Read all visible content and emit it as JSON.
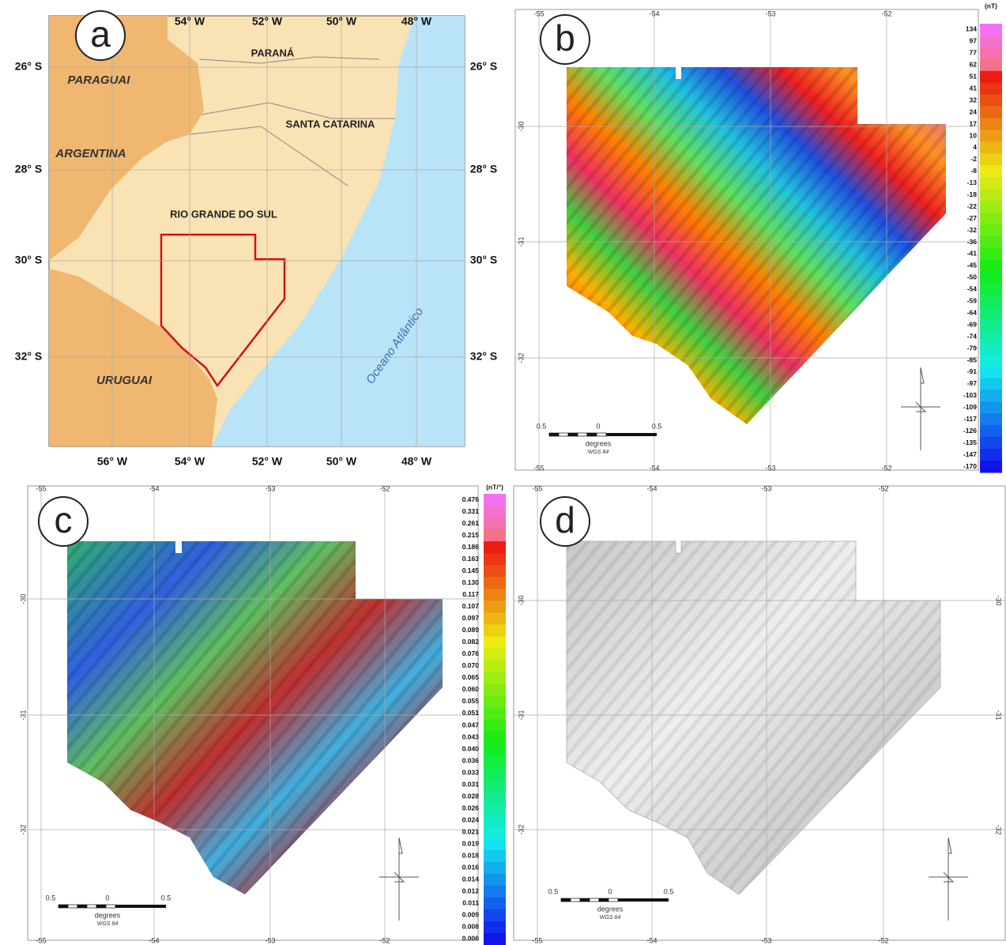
{
  "panels": [
    {
      "label": "a",
      "top_ticks": [
        "54° W",
        "52° W",
        "50° W",
        "48° W"
      ],
      "bottom_ticks": [
        "56° W",
        "54° W",
        "52° W",
        "50° W",
        "48° W"
      ],
      "left_ticks": [
        "26° S",
        "28° S",
        "30° S",
        "32° S"
      ],
      "right_ticks": [
        "26° S",
        "28° S",
        "30° S",
        "32° S"
      ],
      "places": {
        "paraguai": "PARAGUAI",
        "parana": "PARANÁ",
        "santa_catarina": "SANTA CATARINA",
        "argentina": "ARGENTINA",
        "rgs": "RIO GRANDE DO SUL",
        "uruguai": "URUGUAI",
        "ocean": "Oceano Atlântico"
      }
    },
    {
      "label": "b",
      "top_ticks": [
        "-55",
        "-54",
        "-53",
        "-52"
      ],
      "bottom_ticks": [
        "-55",
        "-54",
        "-53",
        "-52"
      ],
      "left_ticks": [
        "-30",
        "-31",
        "-32"
      ],
      "colorbar": {
        "unit": "(nT)",
        "labels": [
          "134",
          "97",
          "77",
          "62",
          "51",
          "41",
          "32",
          "24",
          "17",
          "10",
          "4",
          "-2",
          "-8",
          "-13",
          "-18",
          "-22",
          "-27",
          "-32",
          "-36",
          "-41",
          "-45",
          "-50",
          "-54",
          "-59",
          "-64",
          "-69",
          "-74",
          "-79",
          "-85",
          "-91",
          "-97",
          "-103",
          "-109",
          "-117",
          "-126",
          "-135",
          "-147",
          "-170"
        ]
      },
      "scale": {
        "labels": [
          "0.5",
          "0",
          "0.5"
        ],
        "unit": "degrees",
        "datum": "WGS 84"
      }
    },
    {
      "label": "c",
      "top_ticks": [
        "-55",
        "-54",
        "-53",
        "-52"
      ],
      "bottom_ticks": [
        "-55",
        "-54",
        "-53",
        "-52"
      ],
      "left_ticks": [
        "-30",
        "-31",
        "-32"
      ],
      "colorbar": {
        "unit": "(nT/°)",
        "labels": [
          "0.476",
          "0.331",
          "0.261",
          "0.215",
          "0.186",
          "0.163",
          "0.145",
          "0.130",
          "0.117",
          "0.107",
          "0.097",
          "0.089",
          "0.082",
          "0.076",
          "0.070",
          "0.065",
          "0.060",
          "0.055",
          "0.051",
          "0.047",
          "0.043",
          "0.040",
          "0.036",
          "0.033",
          "0.031",
          "0.028",
          "0.026",
          "0.024",
          "0.021",
          "0.019",
          "0.018",
          "0.016",
          "0.014",
          "0.012",
          "0.011",
          "0.009",
          "0.008",
          "0.006"
        ]
      },
      "scale": {
        "labels": [
          "0.5",
          "0",
          "0.5"
        ],
        "unit": "degrees",
        "datum": "WGS 84"
      }
    },
    {
      "label": "d",
      "top_ticks": [
        "-55",
        "-54",
        "-53",
        "-52"
      ],
      "bottom_ticks": [
        "-55",
        "-54",
        "-53",
        "-52"
      ],
      "left_ticks": [
        "-30",
        "-31",
        "-32"
      ],
      "right_ticks": [
        "-30",
        "-31",
        "-32"
      ],
      "scale": {
        "labels": [
          "0.5",
          "0",
          "0.5"
        ],
        "unit": "degrees",
        "datum": "WGS 84"
      }
    }
  ]
}
